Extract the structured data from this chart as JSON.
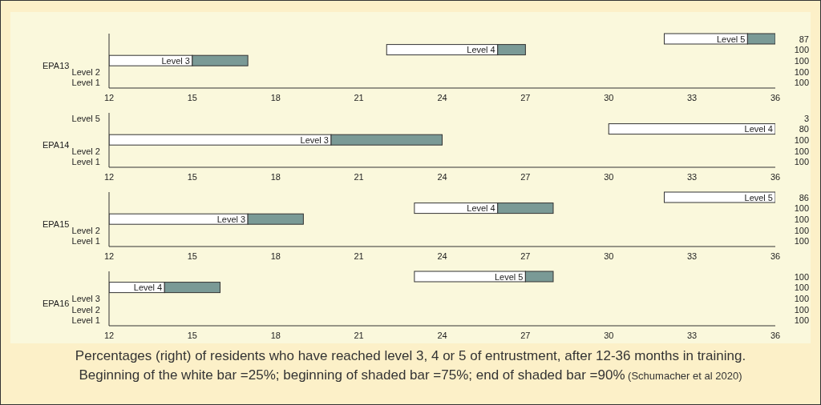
{
  "chart_data": [
    {
      "type": "bar",
      "orientation": "horizontal",
      "ylabel": "EPA13",
      "categories": [
        "Level 5",
        "Level 4",
        "Level 3",
        "Level 2",
        "Level 1"
      ],
      "y2_categories": [
        "87",
        "100",
        "100",
        "100",
        "100"
      ],
      "series": [
        {
          "color": "#ffffff",
          "base": [
            32,
            22,
            12,
            null,
            null
          ],
          "values": [
            3,
            4,
            3,
            null,
            null
          ]
        },
        {
          "color": "#7a9a96",
          "base": [
            35,
            26,
            15,
            null,
            null
          ],
          "values": [
            1,
            1,
            2,
            null,
            null
          ]
        }
      ],
      "xlim": [
        12,
        36
      ],
      "xticks": [
        12,
        15,
        18,
        21,
        24,
        27,
        30,
        33,
        36
      ]
    },
    {
      "type": "bar",
      "orientation": "horizontal",
      "ylabel": "EPA14",
      "categories": [
        "Level 5",
        "Level 4",
        "Level 3",
        "Level 2",
        "Level 1"
      ],
      "y2_categories": [
        "3",
        "80",
        "100",
        "100",
        "100"
      ],
      "series": [
        {
          "color": "#ffffff",
          "base": [
            null,
            30,
            12,
            null,
            null
          ],
          "values": [
            null,
            6,
            8,
            null,
            null
          ]
        },
        {
          "color": "#7a9a96",
          "base": [
            null,
            null,
            20,
            null,
            null
          ],
          "values": [
            null,
            null,
            4,
            null,
            null
          ]
        }
      ],
      "xlim": [
        12,
        36
      ],
      "xticks": [
        12,
        15,
        18,
        21,
        24,
        27,
        30,
        33,
        36
      ]
    },
    {
      "type": "bar",
      "orientation": "horizontal",
      "ylabel": "EPA15",
      "categories": [
        "Level 5",
        "Level 4",
        "Level 3",
        "Level 2",
        "Level 1"
      ],
      "y2_categories": [
        "86",
        "100",
        "100",
        "100",
        "100"
      ],
      "series": [
        {
          "color": "#ffffff",
          "base": [
            32,
            23,
            12,
            null,
            null
          ],
          "values": [
            4,
            3,
            5,
            null,
            null
          ]
        },
        {
          "color": "#7a9a96",
          "base": [
            null,
            26,
            17,
            null,
            null
          ],
          "values": [
            null,
            2,
            2,
            null,
            null
          ]
        }
      ],
      "xlim": [
        12,
        36
      ],
      "xticks": [
        12,
        15,
        18,
        21,
        24,
        27,
        30,
        33,
        36
      ]
    },
    {
      "type": "bar",
      "orientation": "horizontal",
      "ylabel": "EPA16",
      "categories": [
        "Level 5",
        "Level 4",
        "Level 3",
        "Level 2",
        "Level 1"
      ],
      "y2_categories": [
        "100",
        "100",
        "100",
        "100",
        "100"
      ],
      "series": [
        {
          "color": "#ffffff",
          "base": [
            23,
            12,
            null,
            null,
            null
          ],
          "values": [
            4,
            2,
            null,
            null,
            null
          ]
        },
        {
          "color": "#7a9a96",
          "base": [
            27,
            14,
            null,
            null,
            null
          ],
          "values": [
            1,
            2,
            null,
            null,
            null
          ]
        }
      ],
      "xlim": [
        12,
        36
      ],
      "xticks": [
        12,
        15,
        18,
        21,
        24,
        27,
        30,
        33,
        36
      ],
      "annotations": [
        "Percentages (right) of residents who have reached level 3, 4 or 5 of entrustment, after 12-36 months in training.",
        "Beginning of the white bar =25%; beginning of shaded bar =75%; end of shaded bar =90%",
        "(Schumacher et al 2020)"
      ]
    }
  ]
}
